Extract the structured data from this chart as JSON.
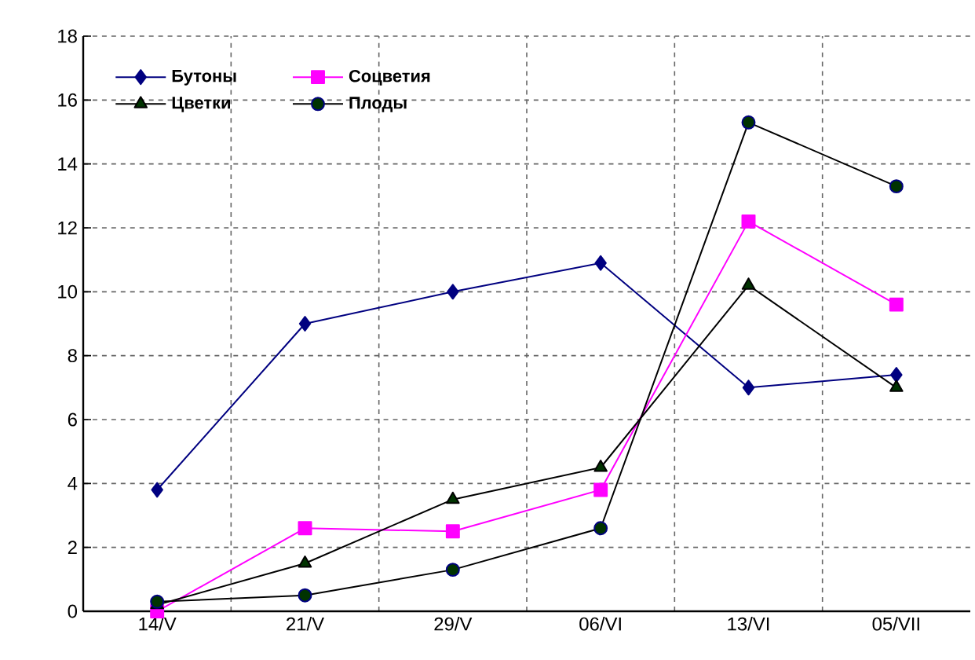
{
  "chart_data": {
    "type": "line",
    "categories": [
      "14/V",
      "21/V",
      "29/V",
      "06/VI",
      "13/VI",
      "05/VII"
    ],
    "series": [
      {
        "name": "Бутоны",
        "color": "#000080",
        "marker": "diamond",
        "values": [
          3.8,
          9.0,
          10.0,
          10.9,
          7.0,
          7.4
        ]
      },
      {
        "name": "Соцветия",
        "color": "#ff00ff",
        "marker": "square",
        "values": [
          0,
          2.6,
          2.5,
          3.8,
          12.2,
          9.6
        ]
      },
      {
        "name": "Цветки",
        "color": "#000000",
        "marker": "triangle",
        "values": [
          0.2,
          1.5,
          3.5,
          4.5,
          10.2,
          7.0
        ]
      },
      {
        "name": "Плоды",
        "color": "#000000",
        "marker": "circle",
        "values": [
          0.3,
          0.5,
          1.3,
          2.6,
          15.3,
          13.3
        ]
      }
    ],
    "ylim": [
      0,
      18
    ],
    "yticks": [
      0,
      2,
      4,
      6,
      8,
      10,
      12,
      14,
      16,
      18
    ],
    "grid": true,
    "legend": "top left"
  }
}
